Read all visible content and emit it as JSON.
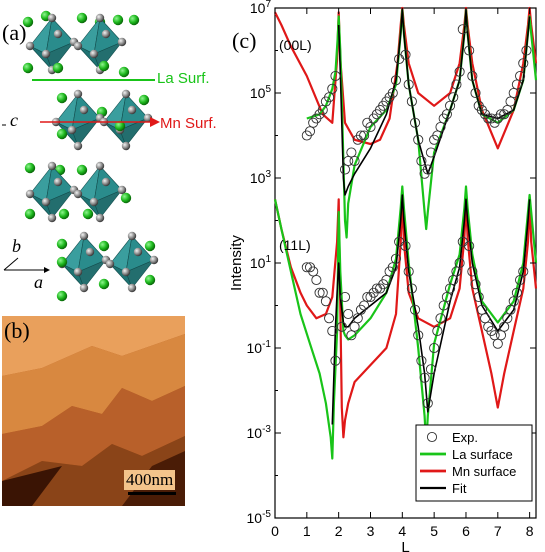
{
  "panels": {
    "a": {
      "label": "(a)",
      "la_surf_label": "La Surf.",
      "mn_surf_label": "Mn Surf.",
      "axis_c": "c",
      "axis_b": "b",
      "axis_a": "a"
    },
    "b": {
      "label": "(b)",
      "scale_bar": "400nm"
    },
    "c": {
      "label": "(c)"
    }
  },
  "colors": {
    "la": "#19c419",
    "mn": "#e01818",
    "fit": "#000000",
    "octahedron": "#2a8c8c",
    "la_atom": "#1db81d",
    "o_atom": "#8a8a8a"
  },
  "chart_data": {
    "type": "line",
    "xlabel": "L",
    "ylabel": "Intensity",
    "xlim": [
      0,
      8.2
    ],
    "ylim_log10": [
      -5,
      7
    ],
    "y_ticks": [
      "10-5",
      "10-3",
      "10-1",
      "101",
      "103",
      "105",
      "107"
    ],
    "x_ticks": [
      "0",
      "1",
      "2",
      "3",
      "4",
      "5",
      "6",
      "7",
      "8"
    ],
    "log_scale_y": true,
    "legend": {
      "placement": "bottom-right",
      "entries": [
        {
          "key": "exp",
          "label": "Exp."
        },
        {
          "key": "la",
          "label": "La surface"
        },
        {
          "key": "mn",
          "label": "Mn surface"
        },
        {
          "key": "fit",
          "label": "Fit"
        }
      ]
    },
    "rods": [
      {
        "label": "(00L)",
        "series": {
          "la": {
            "x": [
              1.0,
              1.2,
              1.4,
              1.6,
              1.8,
              1.9,
              1.97,
              2.0,
              2.05,
              2.1,
              2.2,
              2.25,
              2.3,
              2.5,
              3.0,
              3.5,
              3.8,
              3.95,
              4.0,
              4.05,
              4.2,
              4.5,
              4.7,
              4.75,
              4.8,
              5.0,
              5.5,
              5.8,
              5.95,
              6.0,
              6.05,
              6.2,
              6.5,
              7.0,
              7.5,
              7.8,
              7.95,
              8.0,
              8.05,
              8.2
            ],
            "y": [
              4.4,
              4.45,
              4.5,
              4.7,
              5.1,
              5.5,
              6.3,
              6.8,
              6.0,
              4.8,
              2.0,
              1.6,
              2.4,
              3.3,
              4.2,
              4.6,
              5.2,
              6.4,
              6.95,
              6.4,
              5.2,
              3.9,
              2.2,
              1.8,
              2.2,
              3.6,
              4.6,
              5.3,
              6.4,
              6.95,
              6.4,
              5.3,
              4.5,
              4.3,
              4.6,
              5.3,
              6.4,
              6.8,
              6.4,
              5.3
            ]
          },
          "mn": {
            "x": [
              0.0,
              0.2,
              0.5,
              1.0,
              1.5,
              1.8,
              1.95,
              2.0,
              2.05,
              2.2,
              2.5,
              3.0,
              3.3,
              3.6,
              3.85,
              3.95,
              4.0,
              4.05,
              4.2,
              4.5,
              5.0,
              5.5,
              5.8,
              5.95,
              6.0,
              6.05,
              6.2,
              6.5,
              7.0,
              7.5,
              7.8,
              7.95,
              8.0,
              8.05,
              8.2
            ],
            "y": [
              6.9,
              6.6,
              6.1,
              5.4,
              4.5,
              4.3,
              5.8,
              6.9,
              5.8,
              4.3,
              3.9,
              3.8,
              3.9,
              4.4,
              5.7,
              6.6,
              7.0,
              6.6,
              5.7,
              5.0,
              4.7,
              5.0,
              5.7,
              6.6,
              7.0,
              6.6,
              5.7,
              4.6,
              3.7,
              4.6,
              5.7,
              6.6,
              7.0,
              6.6,
              5.7
            ]
          },
          "fit": {
            "x": [
              2.0,
              2.05,
              2.15,
              2.2,
              2.3,
              2.5,
              3.0,
              3.5,
              3.8,
              3.95,
              4.0,
              4.05,
              4.2,
              4.5,
              4.8,
              5.0,
              5.5,
              5.8,
              5.95,
              6.0,
              6.05,
              6.2,
              6.5,
              7.0,
              7.5,
              7.8,
              7.95,
              8.0
            ],
            "y": [
              6.6,
              5.5,
              3.0,
              2.6,
              2.8,
              3.1,
              3.7,
              4.5,
              5.3,
              6.4,
              6.95,
              6.4,
              5.2,
              3.9,
              3.1,
              3.5,
              4.6,
              5.3,
              6.4,
              6.95,
              6.4,
              5.3,
              4.5,
              4.4,
              4.6,
              5.3,
              6.4,
              6.8
            ]
          },
          "exp": {
            "x": [
              1.0,
              1.1,
              1.2,
              1.3,
              1.4,
              1.5,
              1.6,
              1.7,
              1.8,
              1.9,
              2.2,
              2.3,
              2.4,
              2.5,
              2.6,
              2.7,
              2.8,
              2.9,
              3.0,
              3.1,
              3.2,
              3.3,
              3.4,
              3.5,
              3.6,
              3.7,
              3.8,
              3.9,
              4.1,
              4.2,
              4.3,
              4.4,
              4.5,
              4.6,
              4.7,
              4.8,
              4.9,
              5.0,
              5.1,
              5.2,
              5.3,
              5.4,
              5.5,
              5.6,
              5.7,
              5.8,
              5.9,
              6.1,
              6.2,
              6.3,
              6.4,
              6.5,
              6.6,
              6.7,
              6.8,
              6.9,
              7.0,
              7.1,
              7.2,
              7.3,
              7.4,
              7.5,
              7.6,
              7.7,
              7.8,
              7.9
            ],
            "y": [
              4.0,
              4.1,
              4.3,
              4.4,
              4.5,
              4.6,
              4.8,
              4.9,
              5.1,
              5.4,
              3.2,
              3.4,
              3.6,
              3.4,
              3.9,
              4.0,
              4.0,
              4.3,
              4.2,
              4.4,
              4.5,
              4.6,
              4.7,
              4.8,
              4.9,
              5.0,
              5.3,
              5.8,
              5.9,
              5.2,
              4.8,
              4.3,
              3.9,
              3.4,
              3.1,
              3.2,
              3.6,
              3.9,
              4.0,
              4.2,
              4.4,
              4.5,
              4.7,
              4.9,
              5.2,
              5.5,
              6.5,
              6.0,
              5.4,
              5.0,
              4.7,
              4.6,
              4.5,
              4.4,
              4.4,
              4.3,
              4.4,
              4.5,
              4.5,
              4.6,
              4.8,
              5.0,
              5.2,
              5.4,
              5.7,
              6.0
            ]
          }
        }
      },
      {
        "label": "(11L)",
        "series": {
          "la": {
            "x": [
              0.0,
              0.2,
              0.5,
              0.8,
              1.1,
              1.4,
              1.6,
              1.75,
              1.8,
              1.85,
              1.95,
              2.0,
              2.05,
              2.15,
              2.2,
              2.3,
              2.5,
              3.0,
              3.5,
              3.8,
              3.95,
              4.0,
              4.05,
              4.2,
              4.5,
              4.7,
              4.75,
              4.8,
              5.0,
              5.5,
              5.8,
              5.95,
              6.0,
              6.05,
              6.2,
              6.5,
              7.0,
              7.5,
              7.8,
              7.95,
              8.0,
              8.05,
              8.2
            ],
            "y": [
              2.5,
              1.8,
              0.8,
              -0.2,
              -0.9,
              -1.6,
              -2.3,
              -3.1,
              -3.6,
              -2.3,
              -0.6,
              2.2,
              0.8,
              -0.6,
              -0.7,
              -0.8,
              -0.7,
              -0.3,
              0.3,
              1.1,
              2.3,
              2.8,
              2.3,
              1.0,
              -1.0,
              -2.6,
              -3.3,
              -2.6,
              -0.9,
              0.5,
              1.2,
              2.3,
              2.8,
              2.3,
              1.2,
              0.1,
              -0.4,
              0.1,
              1.0,
              2.2,
              2.6,
              2.2,
              1.0
            ]
          },
          "mn": {
            "x": [
              0.0,
              0.2,
              0.5,
              0.8,
              1.0,
              1.3,
              1.6,
              1.8,
              1.95,
              2.0,
              2.05,
              2.1,
              2.15,
              2.2,
              2.3,
              2.5,
              3.0,
              3.5,
              3.8,
              3.95,
              4.0,
              4.05,
              4.2,
              4.5,
              5.0,
              5.5,
              5.8,
              5.95,
              6.0,
              6.05,
              6.2,
              6.5,
              6.8,
              7.0,
              7.2,
              7.5,
              7.8,
              7.95,
              8.0,
              8.05,
              8.2
            ],
            "y": [
              2.5,
              1.8,
              0.9,
              0.3,
              0.0,
              -0.3,
              -0.2,
              0.2,
              1.5,
              2.5,
              0.0,
              -2.4,
              -3.1,
              -2.7,
              -2.3,
              -1.8,
              -1.4,
              -1.0,
              -0.2,
              1.5,
              2.6,
              1.5,
              0.3,
              -0.3,
              -0.5,
              -0.3,
              0.4,
              1.6,
              2.5,
              1.6,
              0.4,
              -0.6,
              -1.6,
              -2.4,
              -1.6,
              -0.6,
              0.4,
              1.5,
              2.5,
              1.5,
              0.4
            ]
          },
          "fit": {
            "x": [
              1.8,
              1.9,
              1.95,
              2.0,
              2.05,
              2.15,
              2.2,
              2.3,
              2.5,
              3.0,
              3.5,
              3.8,
              3.95,
              4.0,
              4.05,
              4.2,
              4.5,
              4.7,
              4.8,
              5.0,
              5.5,
              5.8,
              5.95,
              6.0,
              6.05,
              6.2,
              6.5,
              7.0,
              7.5,
              7.8,
              7.95,
              8.0
            ],
            "y": [
              -2.8,
              -0.5,
              0.3,
              1.0,
              0.2,
              -0.4,
              -0.5,
              -0.5,
              -0.3,
              0.0,
              0.3,
              0.9,
              2.0,
              2.6,
              2.0,
              0.8,
              -0.5,
              -1.6,
              -2.5,
              -1.6,
              0.1,
              0.9,
              2.0,
              2.5,
              2.0,
              1.0,
              0.0,
              -0.6,
              -0.1,
              0.8,
              2.0,
              2.5
            ]
          },
          "exp": {
            "x": [
              1.0,
              1.1,
              1.2,
              1.3,
              1.4,
              1.5,
              1.6,
              1.7,
              1.8,
              1.9,
              2.1,
              2.2,
              2.3,
              2.4,
              2.5,
              2.6,
              2.7,
              2.8,
              2.9,
              3.0,
              3.1,
              3.2,
              3.3,
              3.4,
              3.5,
              3.6,
              3.7,
              3.8,
              3.9,
              4.1,
              4.2,
              4.3,
              4.4,
              4.5,
              4.6,
              4.7,
              4.8,
              4.9,
              5.0,
              5.1,
              5.2,
              5.3,
              5.4,
              5.5,
              5.6,
              5.7,
              5.8,
              5.9,
              6.1,
              6.2,
              6.3,
              6.4,
              6.5,
              6.6,
              6.7,
              6.8,
              6.9,
              7.0,
              7.1,
              7.2,
              7.3,
              7.4,
              7.5,
              7.6,
              7.7,
              7.8
            ],
            "y": [
              0.9,
              0.9,
              0.8,
              0.6,
              0.3,
              0.3,
              0.1,
              -0.3,
              -0.6,
              -1.3,
              -0.5,
              0.2,
              -0.2,
              -0.7,
              -0.5,
              -0.3,
              -0.1,
              0.0,
              0.2,
              0.2,
              0.3,
              0.4,
              0.4,
              0.5,
              0.6,
              0.8,
              0.9,
              1.1,
              1.5,
              1.4,
              0.8,
              0.4,
              -0.1,
              -0.7,
              -1.3,
              -1.7,
              -2.3,
              -1.5,
              -1.0,
              -0.6,
              -0.3,
              0.0,
              0.2,
              0.4,
              0.6,
              0.8,
              1.0,
              1.5,
              1.4,
              0.8,
              0.5,
              0.2,
              -0.1,
              -0.3,
              -0.5,
              -0.6,
              -0.7,
              -0.9,
              -0.7,
              -0.5,
              -0.3,
              -0.1,
              0.1,
              0.3,
              0.6,
              0.8
            ]
          }
        }
      }
    ]
  }
}
